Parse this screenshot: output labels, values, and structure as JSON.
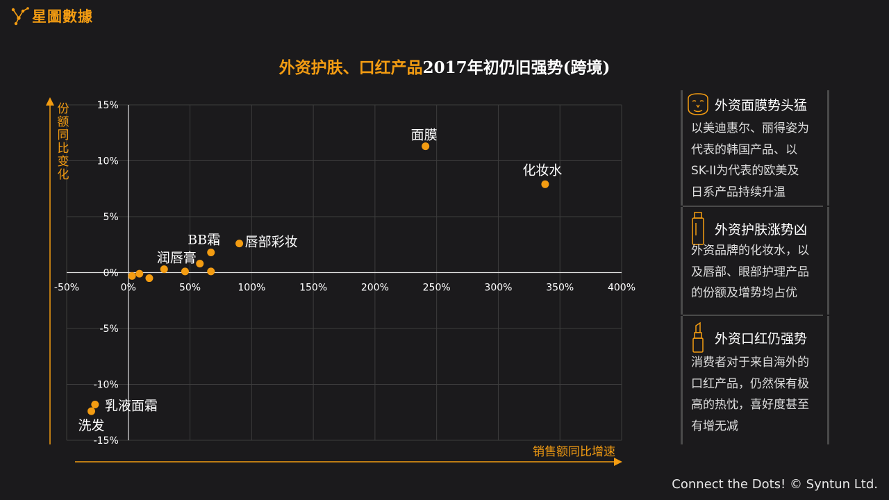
{
  "brand": {
    "name": "星圖數據"
  },
  "title": {
    "part1": "外资护肤、口红产品",
    "part2": "2017年初仍旧强势(跨境)"
  },
  "colors": {
    "accent": "#f39c12",
    "background": "#1b1a1c",
    "grid": "#3d3d3d",
    "axis": "#e0e0e0"
  },
  "chart_data": {
    "type": "scatter",
    "title": "",
    "xlabel": "销售额同比增速",
    "ylabel": "份额同比变化",
    "xlim": [
      -50,
      400
    ],
    "ylim": [
      -15,
      15
    ],
    "x_ticks": [
      -50,
      0,
      50,
      100,
      150,
      200,
      250,
      300,
      350,
      400
    ],
    "y_ticks": [
      -15,
      -10,
      -5,
      0,
      5,
      10,
      15
    ],
    "tick_format": "percent",
    "grid": true,
    "points": [
      {
        "label": "面膜",
        "x": 241,
        "y": 11.3
      },
      {
        "label": "化妆水",
        "x": 338,
        "y": 7.9
      },
      {
        "label": "唇部彩妆",
        "x": 90,
        "y": 2.6
      },
      {
        "label": "BB霜",
        "x": 67,
        "y": 1.8
      },
      {
        "label": "润唇膏",
        "x": 29,
        "y": 0.3
      },
      {
        "label": "",
        "x": 58,
        "y": 0.8
      },
      {
        "label": "",
        "x": 67,
        "y": 0.1
      },
      {
        "label": "",
        "x": 46,
        "y": 0.1
      },
      {
        "label": "",
        "x": 9,
        "y": -0.1
      },
      {
        "label": "",
        "x": 3,
        "y": -0.3
      },
      {
        "label": "",
        "x": 17,
        "y": -0.5
      },
      {
        "label": "乳液面霜",
        "x": -27,
        "y": -11.8
      },
      {
        "label": "洗发",
        "x": -30,
        "y": -12.4
      }
    ]
  },
  "panels": [
    {
      "icon": "face-mask-icon",
      "title": "外资面膜势头猛",
      "lines": [
        "以美迪惠尔、丽得姿为",
        "代表的韩国产品、以",
        "SK-II为代表的欧美及",
        "日系产品持续升温"
      ]
    },
    {
      "icon": "toner-bottle-icon",
      "title": "外资护肤涨势凶",
      "lines": [
        "外资品牌的化妆水，以",
        "及唇部、眼部护理产品",
        "的份额及增势均占优"
      ]
    },
    {
      "icon": "lipstick-icon",
      "title": "外资口红仍强势",
      "lines": [
        "消费者对于来自海外的",
        "口红产品，仍然保有极",
        "高的热忱，喜好度甚至",
        "有增无减"
      ]
    }
  ],
  "footer": {
    "text": "Connect the Dots! © Syntun Ltd."
  }
}
